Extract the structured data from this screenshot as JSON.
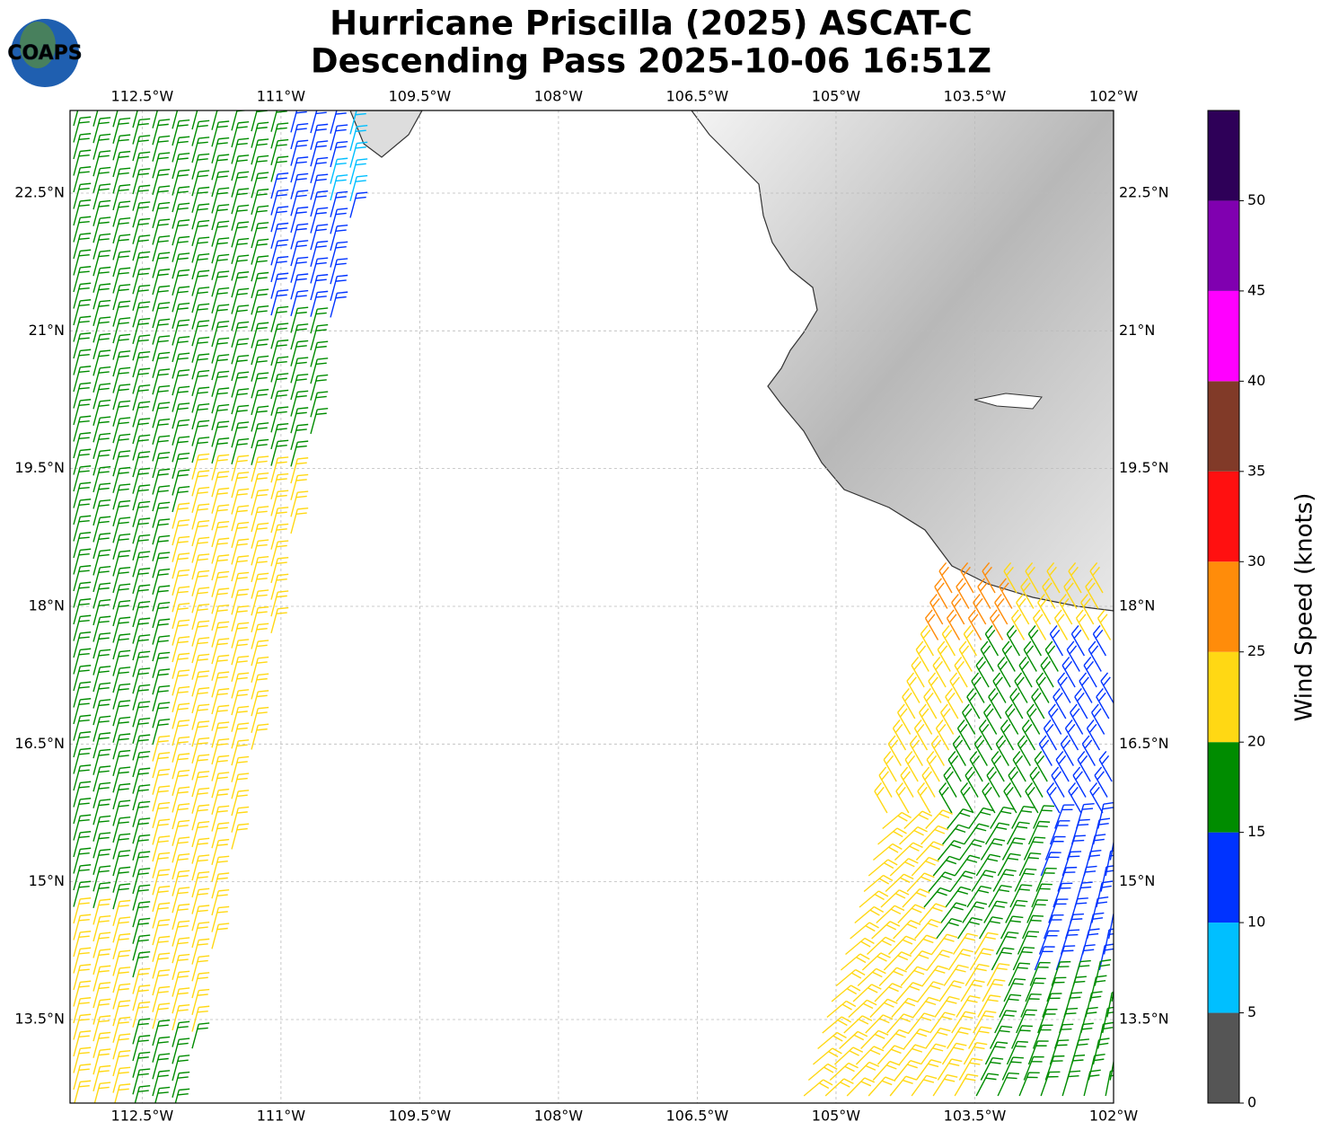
{
  "header": {
    "logo": "COAPS",
    "title": [
      "Hurricane Priscilla (2025) ASCAT-C",
      "Descending Pass 2025-10-06 16:51Z"
    ]
  },
  "map": {
    "lon_range": [
      -113.28,
      -102.0
    ],
    "lat_range": [
      12.59,
      23.4
    ],
    "lon_ticks": [
      {
        "value": -112.5,
        "label": "112.5°W"
      },
      {
        "value": -111,
        "label": "111°W"
      },
      {
        "value": -109.5,
        "label": "109.5°W"
      },
      {
        "value": -108,
        "label": "108°W"
      },
      {
        "value": -106.5,
        "label": "106.5°W"
      },
      {
        "value": -105,
        "label": "105°W"
      },
      {
        "value": -103.5,
        "label": "103.5°W"
      },
      {
        "value": -102,
        "label": "102°W"
      }
    ],
    "lat_ticks": [
      {
        "value": 22.5,
        "label": "22.5°N"
      },
      {
        "value": 21,
        "label": "21°N"
      },
      {
        "value": 19.5,
        "label": "19.5°N"
      },
      {
        "value": 18,
        "label": "18°N"
      },
      {
        "value": 16.5,
        "label": "16.5°N"
      },
      {
        "value": 15,
        "label": "15°N"
      },
      {
        "value": 13.5,
        "label": "13.5°N"
      }
    ]
  },
  "colorbar": {
    "label": "Wind Speed (knots)",
    "range": [
      0,
      55
    ],
    "ticks": [
      0,
      5,
      10,
      15,
      20,
      25,
      30,
      35,
      40,
      45,
      50
    ],
    "colors": [
      "#555555",
      "#00bfff",
      "#0033ff",
      "#008c00",
      "#ffd814",
      "#ff8c0a",
      "#ff1010",
      "#813a28",
      "#ff00ff",
      "#8000b0",
      "#2e0058"
    ]
  }
}
